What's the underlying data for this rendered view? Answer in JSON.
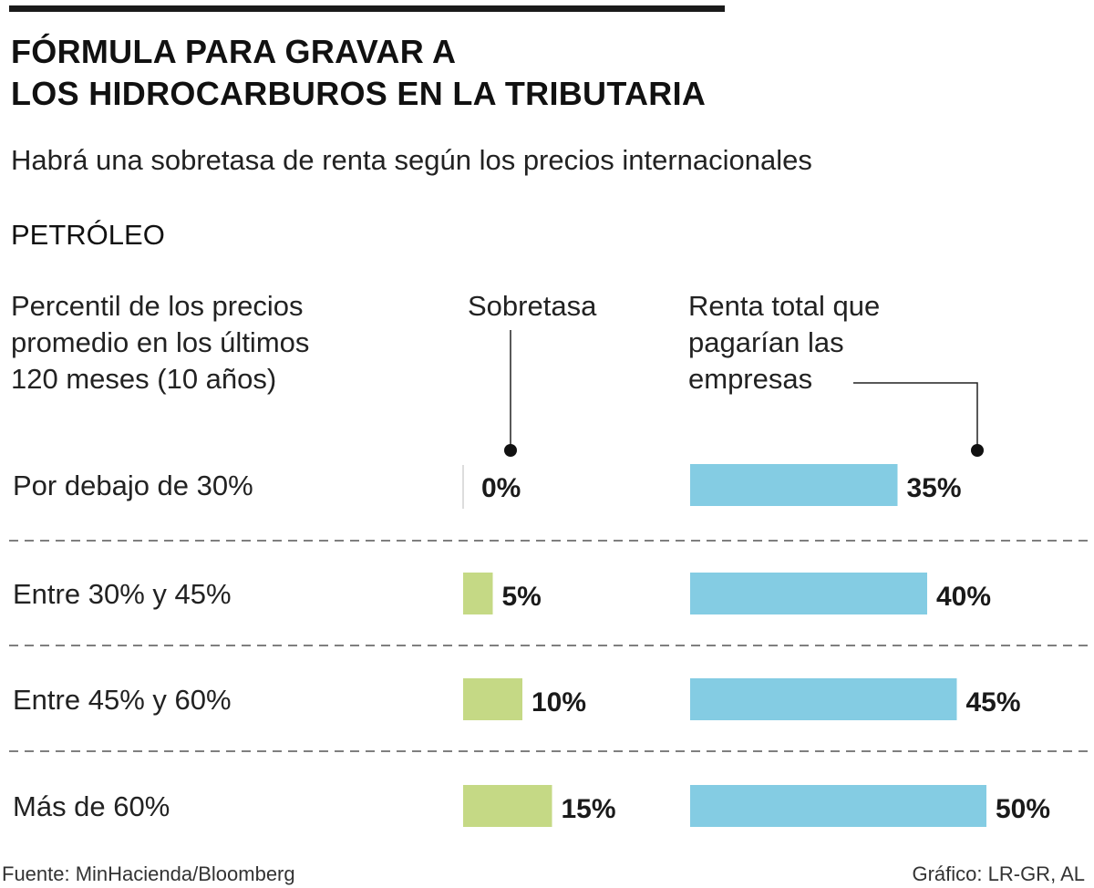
{
  "title_lines": [
    "FÓRMULA PARA GRAVAR A",
    "LOS HIDROCARBUROS EN LA TRIBUTARIA"
  ],
  "subtitle": "Habrá una sobretasa de renta según los precios internacionales",
  "section": "PETRÓLEO",
  "headers": {
    "percentil": [
      "Percentil de los precios",
      "promedio en los últimos",
      "120 meses (10 años)"
    ],
    "sobretasa": [
      "Sobretasa"
    ],
    "renta": [
      "Renta total que",
      "pagarían las",
      "empresas"
    ]
  },
  "colors": {
    "sobretasa": "#c5d985",
    "renta": "#84cce3",
    "text": "#1a1a1a"
  },
  "chart_data": {
    "type": "bar",
    "categories": [
      "Por debajo de 30%",
      "Entre 30% y 45%",
      "Entre 45% y 60%",
      "Más de 60%"
    ],
    "series": [
      {
        "name": "Sobretasa",
        "values": [
          0,
          5,
          10,
          15
        ],
        "labels": [
          "0%",
          "5%",
          "10%",
          "15%"
        ]
      },
      {
        "name": "Renta total que pagarían las empresas",
        "values": [
          35,
          40,
          45,
          50
        ],
        "labels": [
          "35%",
          "40%",
          "45%",
          "50%"
        ]
      }
    ]
  },
  "footer": {
    "source": "Fuente: MinHacienda/Bloomberg",
    "credit": "Gráfico: LR-GR, AL"
  }
}
